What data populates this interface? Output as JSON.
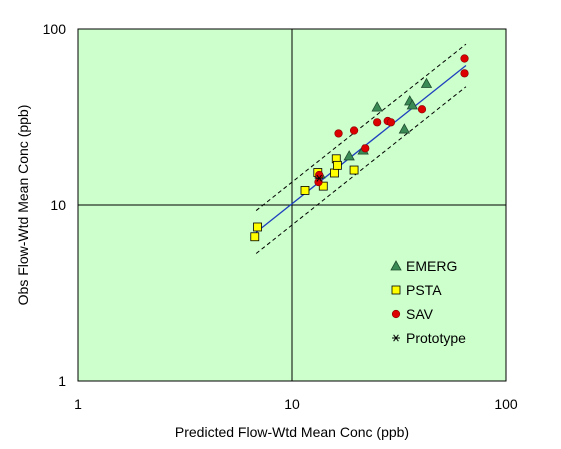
{
  "chart_data": {
    "type": "scatter",
    "title": "",
    "xlabel": "Predicted Flow-Wtd Mean Conc (ppb)",
    "ylabel": "Obs Flow-Wtd Mean Conc (ppb)",
    "x_scale": "log",
    "y_scale": "log",
    "xlim": [
      1,
      100
    ],
    "ylim": [
      1,
      100
    ],
    "x_ticks": [
      "1",
      "10",
      "100"
    ],
    "y_ticks": [
      "1",
      "10",
      "100"
    ],
    "grid": "major lines at 10 on both axes",
    "legend_position": "lower-right",
    "background_color": "#ccffcc",
    "series": [
      {
        "name": "EMERG",
        "marker": "triangle",
        "color": "#3a8a55",
        "points": [
          [
            13.5,
            15
          ],
          [
            18.5,
            19
          ],
          [
            21.5,
            20.5
          ],
          [
            25,
            36
          ],
          [
            33.5,
            27
          ],
          [
            35.5,
            39
          ],
          [
            36.5,
            37
          ],
          [
            42.5,
            49
          ]
        ]
      },
      {
        "name": "PSTA",
        "marker": "square",
        "color": "#ffff00",
        "points": [
          [
            6.7,
            6.6
          ],
          [
            6.9,
            7.5
          ],
          [
            11.5,
            12.1
          ],
          [
            13.2,
            15.3
          ],
          [
            14,
            12.8
          ],
          [
            15.8,
            15.2
          ],
          [
            16.1,
            18.3
          ],
          [
            16.3,
            16.8
          ],
          [
            19.5,
            15.8
          ]
        ]
      },
      {
        "name": "SAV",
        "marker": "circle",
        "color": "#dd0000",
        "points": [
          [
            13.3,
            13.5
          ],
          [
            13.4,
            14.8
          ],
          [
            16.5,
            25.5
          ],
          [
            19.5,
            26.5
          ],
          [
            22,
            21
          ],
          [
            25,
            29.5
          ],
          [
            28,
            30
          ],
          [
            29,
            29.5
          ],
          [
            40.5,
            35
          ],
          [
            64,
            68
          ],
          [
            64,
            56
          ]
        ]
      },
      {
        "name": "Prototype",
        "marker": "asterisk",
        "color": "#000000",
        "points": [
          [
            13.4,
            14.2
          ]
        ]
      }
    ],
    "fit_line": {
      "color": "#1f3fbf",
      "style": "solid",
      "points": [
        [
          6.8,
          7.0
        ],
        [
          65,
          62
        ]
      ]
    },
    "confidence_bands": {
      "color": "#000000",
      "style": "dashed",
      "upper": [
        [
          6.8,
          9.3
        ],
        [
          65,
          82
        ]
      ],
      "lower": [
        [
          6.8,
          5.3
        ],
        [
          65,
          47
        ]
      ]
    }
  }
}
